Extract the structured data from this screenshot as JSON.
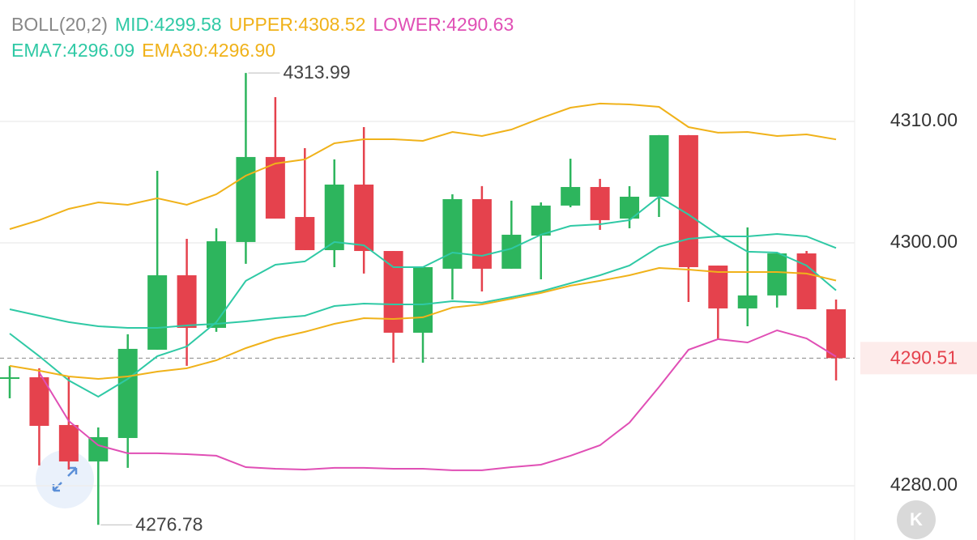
{
  "chart_data": {
    "type": "candlestick",
    "title": "BOLL(20,2)",
    "open": [
      4288.87,
      4288.93,
      4285.0,
      4282.0,
      4283.93,
      4291.2,
      4297.33,
      4293.0,
      4300.07,
      4307.07,
      4302.13,
      4299.4,
      4304.8,
      4299.33,
      4292.6,
      4297.87,
      4303.6,
      4297.87,
      4300.6,
      4303.07,
      4304.6,
      4302.0,
      4303.8,
      4308.87,
      4298.13,
      4294.6,
      4295.67,
      4299.13,
      4294.53
    ],
    "high": [
      4289.87,
      4289.67,
      4289.0,
      4284.8,
      4292.47,
      4305.93,
      4300.33,
      4301.2,
      4313.99,
      4312.0,
      4307.8,
      4306.87,
      4309.53,
      4299.33,
      4298.0,
      4304.0,
      4304.67,
      4303.47,
      4303.33,
      4306.93,
      4305.27,
      4304.67,
      4308.87,
      4308.87,
      4298.13,
      4301.27,
      4299.13,
      4299.33,
      4295.33
    ],
    "low": [
      4287.2,
      4281.67,
      4281.33,
      4276.78,
      4281.47,
      4291.2,
      4289.87,
      4292.67,
      4298.27,
      4302.0,
      4299.4,
      4298.0,
      4297.47,
      4290.13,
      4290.13,
      4295.33,
      4296.0,
      4297.87,
      4297.0,
      4302.93,
      4301.07,
      4301.2,
      4302.13,
      4295.13,
      4292.0,
      4293.13,
      4294.67,
      4294.53,
      4288.67
    ],
    "close": [
      4288.93,
      4284.93,
      4282.0,
      4284.0,
      4291.27,
      4297.33,
      4293.0,
      4300.13,
      4307.07,
      4302.0,
      4299.4,
      4304.8,
      4299.33,
      4292.6,
      4298.0,
      4303.6,
      4297.87,
      4300.67,
      4303.07,
      4304.6,
      4301.87,
      4303.8,
      4308.87,
      4298.0,
      4294.6,
      4295.67,
      4299.13,
      4294.53,
      4290.51
    ],
    "up_color": "#2db55d",
    "down_color": "#e5424d",
    "series": [
      {
        "name": "MID:4299.58",
        "color": "#2fc9a5",
        "values": [
          4294.53,
          4294.0,
          4293.47,
          4293.13,
          4293.0,
          4293.0,
          4293.2,
          4293.33,
          4293.53,
          4293.8,
          4294.0,
          4294.8,
          4295.0,
          4294.93,
          4294.93,
          4295.2,
          4295.07,
          4295.53,
          4296.0,
          4296.67,
          4297.33,
          4298.13,
          4299.67,
          4300.33,
          4300.53,
          4300.53,
          4300.73,
          4300.53,
          4299.58
        ]
      },
      {
        "name": "UPPER:4308.52",
        "color": "#f0b21a",
        "values": [
          4301.13,
          4301.87,
          4302.8,
          4303.33,
          4303.13,
          4303.67,
          4303.13,
          4304.0,
          4305.53,
          4306.53,
          4306.87,
          4308.2,
          4308.53,
          4308.53,
          4308.4,
          4309.13,
          4308.8,
          4309.33,
          4310.27,
          4311.13,
          4311.47,
          4311.4,
          4311.2,
          4309.53,
          4309.07,
          4309.13,
          4308.8,
          4308.93,
          4308.52
        ]
      },
      {
        "name": "LOWER:4290.63",
        "color": "#e04fb5",
        "values": [
          null,
          4289.33,
          4285.33,
          4283.33,
          4282.67,
          4282.67,
          4282.6,
          4282.47,
          4281.53,
          4281.4,
          4281.33,
          4281.47,
          4281.47,
          4281.4,
          4281.4,
          4281.27,
          4281.27,
          4281.53,
          4281.73,
          4282.47,
          4283.33,
          4285.2,
          4288.13,
          4291.2,
          4292.07,
          4291.8,
          4292.8,
          4292.13,
          4290.63
        ]
      },
      {
        "name": "EMA7:4296.09",
        "color": "#2fc9a5",
        "values": [
          4292.53,
          4290.67,
          4288.67,
          4287.33,
          4288.8,
          4290.67,
          4291.47,
          4293.47,
          4296.87,
          4298.2,
          4298.47,
          4300.07,
          4299.8,
          4298.0,
          4298.0,
          4299.2,
          4298.93,
          4299.53,
          4300.67,
          4301.4,
          4301.53,
          4301.87,
          4303.8,
          4302.33,
          4300.67,
          4299.27,
          4299.2,
          4298.13,
          4296.09
        ]
      },
      {
        "name": "EMA30:4296.90",
        "color": "#f0b21a",
        "values": [
          4289.87,
          4289.47,
          4289.0,
          4288.8,
          4289.0,
          4289.4,
          4289.67,
          4290.33,
          4291.33,
          4292.13,
          4292.67,
          4293.33,
          4293.8,
          4293.73,
          4293.87,
          4294.67,
          4294.93,
          4295.4,
          4295.87,
          4296.47,
          4296.87,
          4297.33,
          4297.93,
          4297.8,
          4297.6,
          4297.6,
          4297.6,
          4297.47,
          4296.9
        ]
      }
    ],
    "high_label": "4313.99",
    "low_label": "4276.78",
    "last_price": 4290.51,
    "ylim": [
      4275.53,
      4320
    ],
    "yticks": [
      {
        "value": 4280,
        "label": "4280.00"
      },
      {
        "value": 4300,
        "label": "4300.00"
      },
      {
        "value": 4310,
        "label": "4310.00"
      }
    ],
    "grid": true,
    "k_button": "K"
  }
}
